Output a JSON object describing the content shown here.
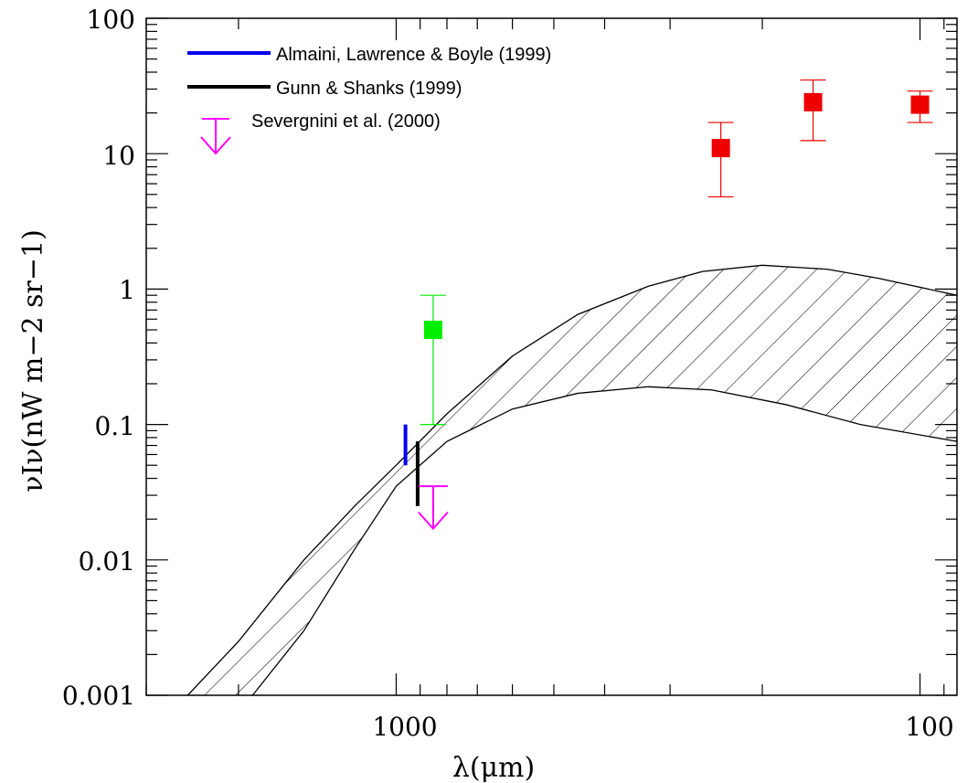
{
  "chart_data": {
    "type": "scatter",
    "title": "",
    "xlabel": "λ(μm)",
    "ylabel": "νIν(nW m−2 sr−1)",
    "x_scale": "log",
    "y_scale": "log",
    "x_reversed": true,
    "xlim": [
      3000,
      85
    ],
    "ylim": [
      0.001,
      100
    ],
    "x_tick_labels": [
      {
        "value": 1000,
        "label": "1000"
      },
      {
        "value": 100,
        "label": "100"
      }
    ],
    "y_tick_labels": [
      {
        "value": 0.001,
        "label": "0.001"
      },
      {
        "value": 0.01,
        "label": "0.01"
      },
      {
        "value": 0.1,
        "label": "0.1"
      },
      {
        "value": 1,
        "label": "1"
      },
      {
        "value": 10,
        "label": "10"
      },
      {
        "value": 100,
        "label": "100"
      }
    ],
    "band": {
      "fill": "hatched",
      "lower": [
        {
          "x": 1880,
          "y": 0.001
        },
        {
          "x": 1500,
          "y": 0.003
        },
        {
          "x": 1200,
          "y": 0.012
        },
        {
          "x": 1000,
          "y": 0.035
        },
        {
          "x": 800,
          "y": 0.075
        },
        {
          "x": 600,
          "y": 0.13
        },
        {
          "x": 450,
          "y": 0.17
        },
        {
          "x": 330,
          "y": 0.19
        },
        {
          "x": 250,
          "y": 0.18
        },
        {
          "x": 180,
          "y": 0.14
        },
        {
          "x": 130,
          "y": 0.1
        },
        {
          "x": 85,
          "y": 0.075
        }
      ],
      "upper": [
        {
          "x": 2500,
          "y": 0.001
        },
        {
          "x": 2000,
          "y": 0.0025
        },
        {
          "x": 1500,
          "y": 0.01
        },
        {
          "x": 1200,
          "y": 0.025
        },
        {
          "x": 1000,
          "y": 0.05
        },
        {
          "x": 800,
          "y": 0.12
        },
        {
          "x": 600,
          "y": 0.32
        },
        {
          "x": 450,
          "y": 0.65
        },
        {
          "x": 330,
          "y": 1.05
        },
        {
          "x": 260,
          "y": 1.35
        },
        {
          "x": 200,
          "y": 1.5
        },
        {
          "x": 150,
          "y": 1.4
        },
        {
          "x": 120,
          "y": 1.2
        },
        {
          "x": 85,
          "y": 0.9
        }
      ]
    },
    "series": [
      {
        "name": "Almaini, Lawrence & Boyle (1999)",
        "color": "#0000ee",
        "kind": "range-bar",
        "x": 960,
        "ymin": 0.05,
        "ymax": 0.1
      },
      {
        "name": "Gunn & Shanks (1999)",
        "color": "#000000",
        "kind": "range-bar",
        "x": 910,
        "ymin": 0.025,
        "ymax": 0.075
      },
      {
        "name": "Severgnini et al. (2000)",
        "color": "#ff00ff",
        "kind": "upper-limit",
        "x": 850,
        "y": 0.035,
        "y_arrow_tip": 0.017
      }
    ],
    "points": [
      {
        "x": 850,
        "y": 0.5,
        "ylow": 0.1,
        "yhigh": 0.9,
        "color": "#00ee00",
        "marker": "square"
      },
      {
        "x": 240,
        "y": 11,
        "ylow": 4.8,
        "yhigh": 17,
        "color": "#ee0000",
        "marker": "square"
      },
      {
        "x": 160,
        "y": 24,
        "ylow": 12.5,
        "yhigh": 35,
        "color": "#ee0000",
        "marker": "square"
      },
      {
        "x": 100,
        "y": 23,
        "ylow": 17,
        "yhigh": 29,
        "color": "#ee0000",
        "marker": "square"
      }
    ]
  }
}
